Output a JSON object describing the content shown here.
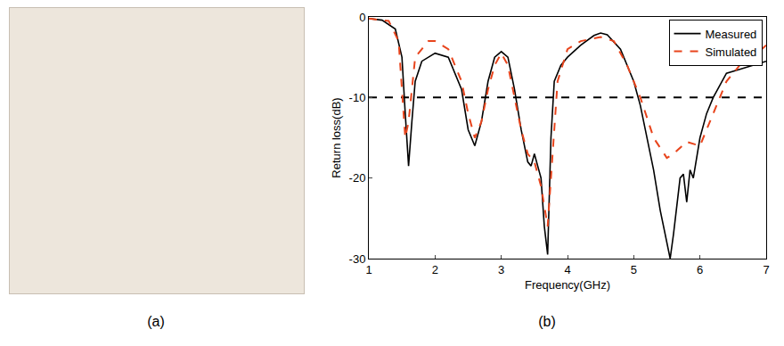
{
  "photo_panel": {
    "label": "(a)"
  },
  "chart_data": {
    "type": "line",
    "panel_label": "(b)",
    "x_label": "Frequency(GHz)",
    "y_label": "Return loss(dB)",
    "xlim": [
      1,
      7
    ],
    "xticks": [
      1,
      2,
      3,
      4,
      5,
      6,
      7
    ],
    "ylim": [
      -30,
      0
    ],
    "yticks": [
      -30,
      -20,
      -10,
      0
    ],
    "grid": false,
    "legend": "top-right",
    "reference_lines": [
      {
        "y": -10,
        "color": "#000000",
        "line_style": "dash"
      }
    ],
    "series": [
      {
        "name": "Measured",
        "color": "#000000",
        "line_style": "solid",
        "x": [
          1.0,
          1.2,
          1.4,
          1.5,
          1.55,
          1.6,
          1.65,
          1.7,
          1.8,
          2.0,
          2.2,
          2.4,
          2.5,
          2.6,
          2.7,
          2.8,
          2.9,
          3.0,
          3.1,
          3.2,
          3.3,
          3.4,
          3.45,
          3.5,
          3.55,
          3.6,
          3.65,
          3.7,
          3.75,
          3.8,
          3.9,
          4.0,
          4.2,
          4.4,
          4.5,
          4.6,
          4.8,
          5.0,
          5.1,
          5.2,
          5.3,
          5.4,
          5.5,
          5.55,
          5.6,
          5.7,
          5.75,
          5.8,
          5.85,
          5.9,
          6.0,
          6.1,
          6.2,
          6.4,
          6.6,
          6.8,
          7.0
        ],
        "values": [
          -0.2,
          -0.4,
          -1.5,
          -5,
          -12,
          -18.5,
          -13,
          -8,
          -5.5,
          -4.5,
          -5,
          -9,
          -14,
          -16,
          -13,
          -8,
          -5,
          -4.3,
          -5,
          -9,
          -14,
          -18,
          -18.5,
          -17,
          -18.5,
          -20,
          -26,
          -29.5,
          -15,
          -8,
          -6,
          -5,
          -3.5,
          -2.3,
          -2,
          -2.2,
          -4,
          -8,
          -11,
          -15,
          -19,
          -24,
          -28,
          -30,
          -27,
          -20,
          -19.5,
          -23,
          -19,
          -20,
          -15,
          -12,
          -10,
          -7,
          -6.5,
          -6,
          -5.5
        ]
      },
      {
        "name": "Simulated",
        "color": "#e8441c",
        "line_style": "dash",
        "x": [
          1.0,
          1.3,
          1.45,
          1.55,
          1.6,
          1.7,
          1.9,
          2.0,
          2.2,
          2.4,
          2.5,
          2.6,
          2.7,
          2.8,
          2.9,
          3.0,
          3.1,
          3.2,
          3.3,
          3.4,
          3.5,
          3.6,
          3.7,
          3.75,
          3.85,
          4.0,
          4.2,
          4.5,
          4.7,
          4.9,
          5.1,
          5.3,
          5.5,
          5.6,
          5.8,
          6.0,
          6.2,
          6.4,
          6.6,
          6.8,
          7.0
        ],
        "values": [
          -0.2,
          -0.5,
          -3,
          -15,
          -13,
          -5,
          -3,
          -3,
          -4,
          -8,
          -12,
          -15,
          -13,
          -9,
          -6,
          -4.5,
          -6,
          -10,
          -14,
          -17,
          -18,
          -21,
          -26,
          -20,
          -8,
          -4,
          -3,
          -2.5,
          -3,
          -6,
          -10,
          -15,
          -17.5,
          -17,
          -15.5,
          -16,
          -12,
          -8,
          -6,
          -5,
          -3.5
        ]
      }
    ]
  }
}
